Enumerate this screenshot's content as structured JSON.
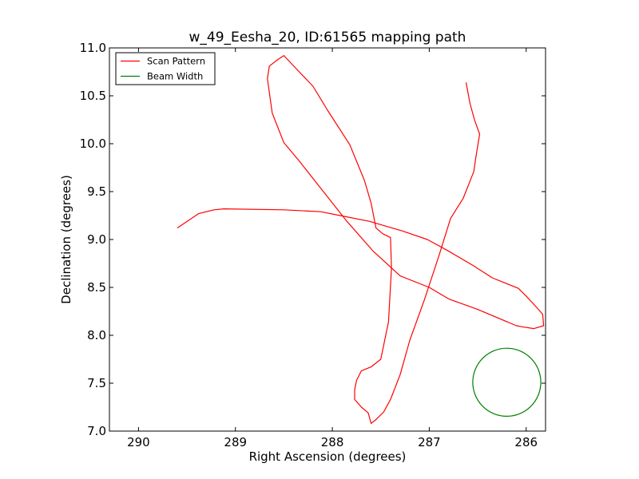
{
  "chart_data": {
    "type": "line",
    "title": "w_49_Eesha_20, ID:61565 mapping path",
    "xlabel": "Right Ascension (degrees)",
    "ylabel": "Declination (degrees)",
    "xlim": [
      290.3,
      285.8
    ],
    "ylim": [
      7.0,
      11.0
    ],
    "x_inverted": true,
    "grid": false,
    "legend_position": "top-left",
    "xticks": [
      290,
      289,
      288,
      287,
      286
    ],
    "xtick_labels": [
      "290",
      "289",
      "288",
      "287",
      "286"
    ],
    "yticks": [
      7.0,
      7.5,
      8.0,
      8.5,
      9.0,
      9.5,
      10.0,
      10.5,
      11.0
    ],
    "ytick_labels": [
      "7.0",
      "7.5",
      "8.0",
      "8.5",
      "9.0",
      "9.5",
      "10.0",
      "10.5",
      "11.0"
    ],
    "series": [
      {
        "name": "Scan Pattern",
        "color": "#ff0000",
        "kind": "path",
        "x": [
          289.6,
          289.38,
          289.22,
          289.12,
          288.5,
          288.12,
          287.92,
          287.62,
          287.28,
          287.02,
          286.82,
          286.55,
          286.35,
          286.08,
          286.0,
          285.9,
          285.83,
          285.82,
          285.92,
          286.05,
          286.1,
          286.5,
          286.8,
          287.0,
          287.3,
          287.58,
          287.85,
          288.1,
          288.35,
          288.5,
          288.62,
          288.67,
          288.65,
          288.56,
          288.5,
          288.37,
          288.2,
          288.05,
          287.82,
          287.67,
          287.6,
          287.55,
          287.48,
          287.4,
          287.39,
          287.42,
          287.5,
          287.6,
          287.7,
          287.75,
          287.77,
          287.77,
          287.7,
          287.63,
          287.6,
          287.55,
          287.47,
          287.4,
          287.3,
          287.2,
          287.05,
          286.9,
          286.78,
          286.65,
          286.54,
          286.52,
          286.48,
          286.53,
          286.58,
          286.62
        ],
        "y": [
          9.12,
          9.27,
          9.31,
          9.32,
          9.31,
          9.29,
          9.25,
          9.19,
          9.09,
          9.0,
          8.89,
          8.73,
          8.6,
          8.49,
          8.41,
          8.3,
          8.22,
          8.1,
          8.07,
          8.09,
          8.1,
          8.27,
          8.38,
          8.5,
          8.62,
          8.88,
          9.19,
          9.51,
          9.83,
          10.01,
          10.32,
          10.68,
          10.81,
          10.88,
          10.92,
          10.78,
          10.6,
          10.35,
          9.99,
          9.62,
          9.38,
          9.12,
          9.06,
          9.02,
          8.7,
          8.14,
          7.75,
          7.67,
          7.63,
          7.53,
          7.43,
          7.33,
          7.25,
          7.19,
          7.08,
          7.12,
          7.2,
          7.33,
          7.59,
          7.95,
          8.37,
          8.83,
          9.22,
          9.43,
          9.71,
          9.85,
          10.1,
          10.24,
          10.42,
          10.64
        ]
      },
      {
        "name": "Beam Width",
        "color": "#008000",
        "kind": "circle",
        "center": [
          286.2,
          7.51
        ],
        "radius_dec": 0.355
      }
    ]
  }
}
